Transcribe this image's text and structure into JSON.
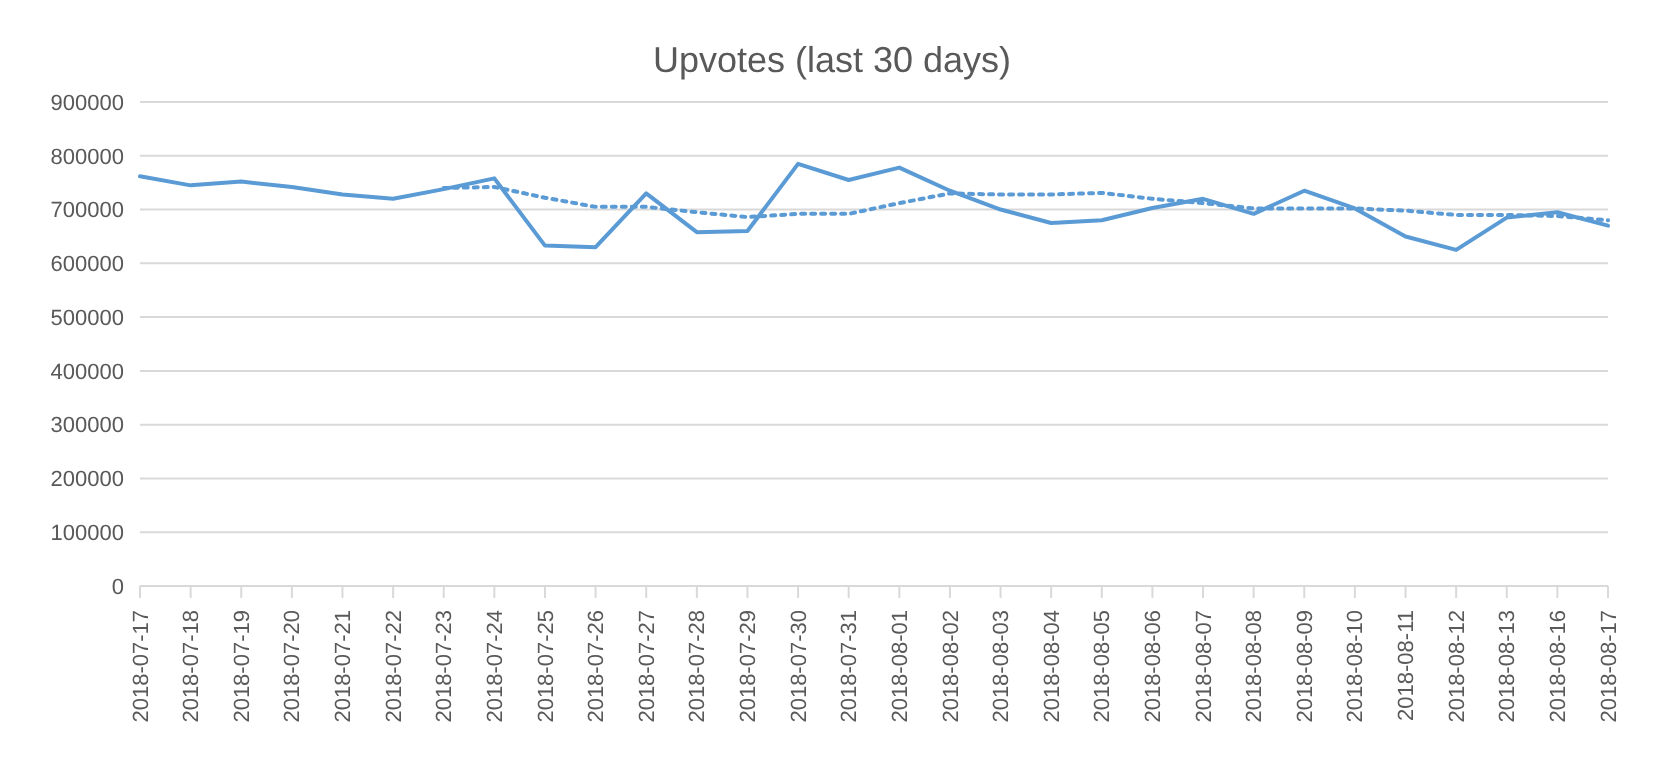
{
  "chart_data": {
    "type": "line",
    "title": "Upvotes (last 30 days)",
    "categories": [
      "2018-07-17",
      "2018-07-18",
      "2018-07-19",
      "2018-07-20",
      "2018-07-21",
      "2018-07-22",
      "2018-07-23",
      "2018-07-24",
      "2018-07-25",
      "2018-07-26",
      "2018-07-27",
      "2018-07-28",
      "2018-07-29",
      "2018-07-30",
      "2018-07-31",
      "2018-08-01",
      "2018-08-02",
      "2018-08-03",
      "2018-08-04",
      "2018-08-05",
      "2018-08-06",
      "2018-08-07",
      "2018-08-08",
      "2018-08-09",
      "2018-08-10",
      "2018-08-11",
      "2018-08-12",
      "2018-08-13",
      "2018-08-16",
      "2018-08-17"
    ],
    "series": [
      {
        "color": "#5b9bd5",
        "line_style": "solid",
        "values": [
          762000,
          745000,
          752000,
          742000,
          728000,
          720000,
          738000,
          758000,
          633000,
          630000,
          730000,
          658000,
          660000,
          785000,
          755000,
          778000,
          735000,
          700000,
          675000,
          680000,
          703000,
          720000,
          692000,
          735000,
          702000,
          650000,
          625000,
          685000,
          695000,
          670000
        ]
      },
      {
        "color": "#5b9bd5",
        "line_style": "dotted",
        "values": [
          null,
          null,
          null,
          null,
          null,
          null,
          740000,
          742000,
          722000,
          705000,
          705000,
          695000,
          686000,
          692000,
          692000,
          712000,
          730000,
          728000,
          728000,
          731000,
          720000,
          712000,
          702000,
          702000,
          702000,
          698000,
          690000,
          690000,
          688000,
          680000
        ]
      }
    ],
    "ylim": [
      0,
      900000
    ],
    "yticks": [
      0,
      100000,
      200000,
      300000,
      400000,
      500000,
      600000,
      700000,
      800000,
      900000
    ],
    "grid": "y",
    "legend": false,
    "marker": "none"
  }
}
